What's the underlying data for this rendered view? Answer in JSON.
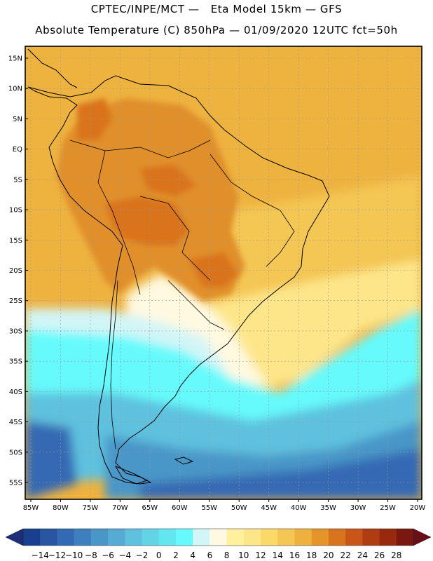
{
  "header": {
    "line1": "CPTEC/INPE/MCT —   Eta Model 15km — GFS",
    "line2": "Absolute Temperature (C) 850hPa — 01/09/2020 12UTC fct=50h"
  },
  "axes": {
    "lat_labels": [
      "15N",
      "10N",
      "5N",
      "EQ",
      "5S",
      "10S",
      "15S",
      "20S",
      "25S",
      "30S",
      "35S",
      "40S",
      "45S",
      "50S",
      "55S"
    ],
    "lon_labels": [
      "85W",
      "80W",
      "75W",
      "70W",
      "65W",
      "60W",
      "55W",
      "50W",
      "45W",
      "40W",
      "35W",
      "30W",
      "25W",
      "20W"
    ]
  },
  "colorbar": {
    "labels": [
      "-14",
      "-12",
      "-10",
      "-8",
      "-6",
      "-4",
      "-2",
      "0",
      "2",
      "4",
      "6",
      "8",
      "10",
      "12",
      "14",
      "16",
      "18",
      "20",
      "22",
      "24",
      "26",
      "28"
    ],
    "colors": [
      "#1b3f8f",
      "#2a55a3",
      "#3469b3",
      "#3d7fbf",
      "#4a96c8",
      "#55abd4",
      "#5fc1de",
      "#62d4e6",
      "#62e6ef",
      "#66fafc",
      "#d2f5f7",
      "#fff9e1",
      "#fff19e",
      "#fde68a",
      "#fbd968",
      "#f4c653",
      "#eeb13d",
      "#e49428",
      "#d9731d",
      "#c95518",
      "#b03d12",
      "#98280e",
      "#7a1810"
    ],
    "under_color": "#1e2f7a",
    "over_color": "#6b0f17"
  },
  "field_colors": {
    "ocean_north": "#eeb23f",
    "warm_land": "#e08f2a",
    "hot_core": "#d9731d",
    "ocean_subtropic": "#f4c653",
    "ocean_pale": "#fde68a",
    "front_cream": "#fff9e1",
    "front_pale_blue": "#d2f5f7",
    "cold_cyan": "#66fafc",
    "cold_mid": "#5fc1de",
    "cold_blue": "#4a96c8",
    "cold_deep": "#3469b3",
    "coast_line": "#000000",
    "grid_line": "#9a9a9a"
  }
}
